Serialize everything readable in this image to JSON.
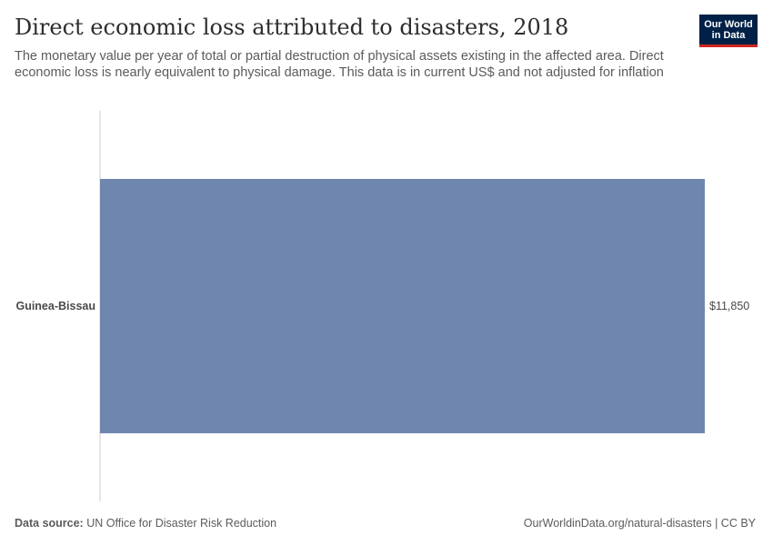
{
  "title": "Direct economic loss attributed to disasters, 2018",
  "subtitle": "The monetary value per year of total or partial destruction of physical assets existing in the affected area. Direct economic loss is nearly equivalent to physical damage. This data is in current US$ and not adjusted for inflation",
  "logo": {
    "line1": "Our World",
    "line2": "in Data"
  },
  "footer": {
    "source_label": "Data source:",
    "source_text": "UN Office for Disaster Risk Reduction",
    "url": "OurWorldinData.org/natural-disasters | CC BY"
  },
  "colors": {
    "bar": "#6f87ae",
    "axis": "#cccccc",
    "label": "#4a4a4a"
  },
  "chart_data": {
    "type": "bar",
    "orientation": "horizontal",
    "title": "Direct economic loss attributed to disasters, 2018",
    "categories": [
      "Guinea-Bissau"
    ],
    "values": [
      11850
    ],
    "value_labels": [
      "$11,850"
    ],
    "xlim": [
      0,
      11850
    ],
    "xlabel": "",
    "ylabel": "",
    "grid": false
  }
}
